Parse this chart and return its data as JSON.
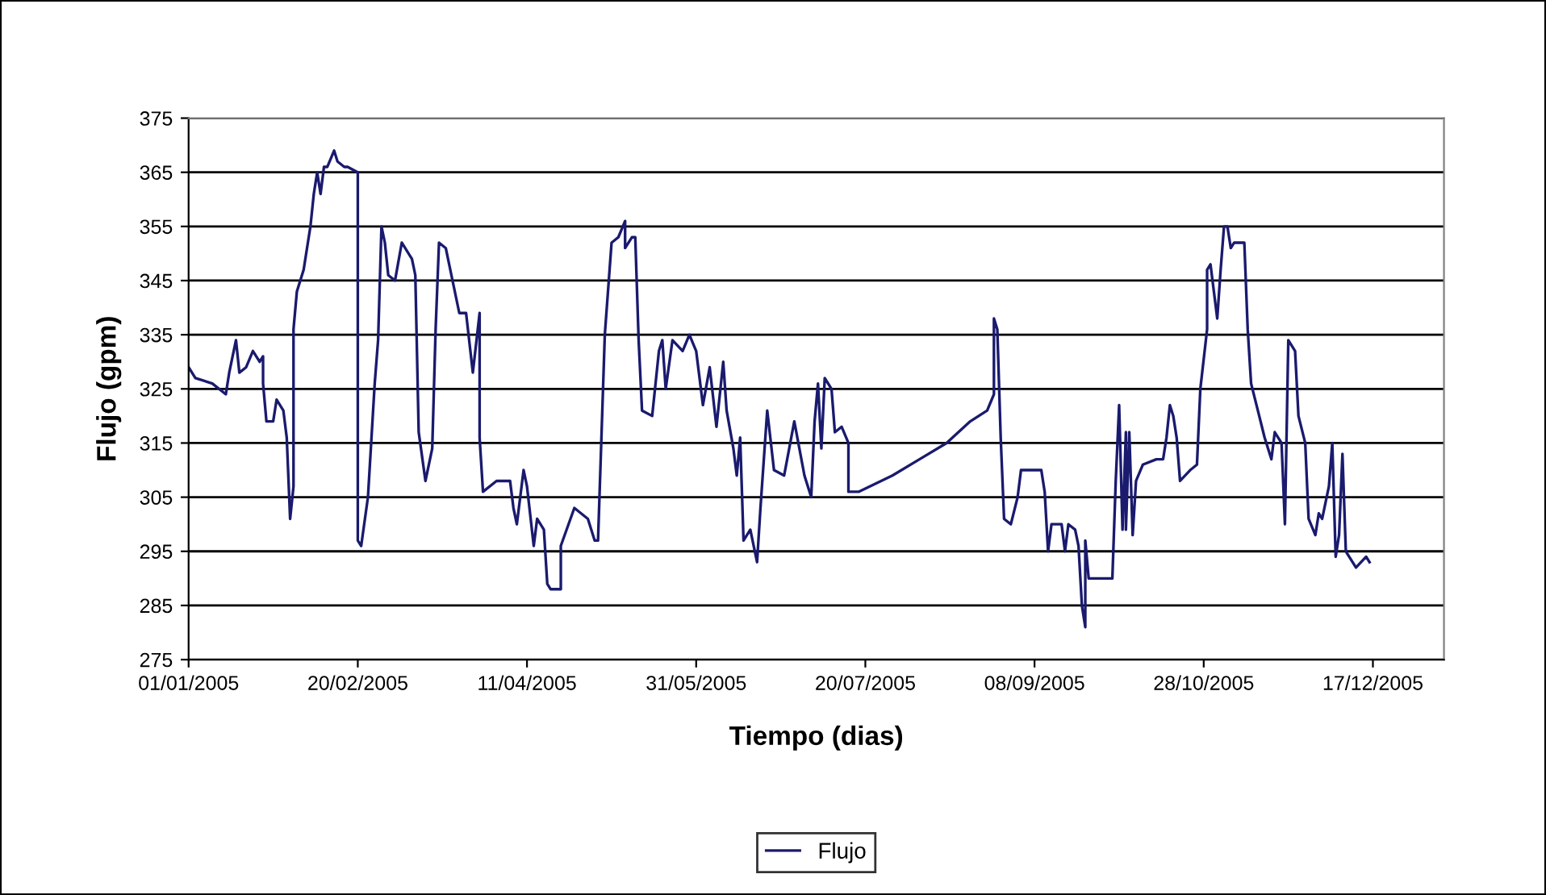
{
  "chart_data": {
    "type": "line",
    "xlabel": "Tiempo (dias)",
    "ylabel": "Flujo (gpm)",
    "xlim": [
      "2005-01-01",
      "2006-01-07"
    ],
    "xticks": [
      {
        "value": "2005-01-01",
        "label": "01/01/2005"
      },
      {
        "value": "2005-02-20",
        "label": "20/02/2005"
      },
      {
        "value": "2005-04-11",
        "label": "11/04/2005"
      },
      {
        "value": "2005-05-31",
        "label": "31/05/2005"
      },
      {
        "value": "2005-07-20",
        "label": "20/07/2005"
      },
      {
        "value": "2005-09-08",
        "label": "08/09/2005"
      },
      {
        "value": "2005-10-28",
        "label": "28/10/2005"
      },
      {
        "value": "2005-12-17",
        "label": "17/12/2005"
      }
    ],
    "ylim": [
      275,
      375
    ],
    "yticks": [
      275,
      285,
      295,
      305,
      315,
      325,
      335,
      345,
      355,
      365,
      375
    ],
    "grid": "y",
    "legend": "bottom",
    "marker": "none",
    "line_style": "solid",
    "series": [
      {
        "name": "Flujo",
        "color": "#1a1a6e",
        "x": [
          "2005-01-01",
          "2005-01-03",
          "2005-01-08",
          "2005-01-12",
          "2005-01-13",
          "2005-01-15",
          "2005-01-16",
          "2005-01-18",
          "2005-01-20",
          "2005-01-22",
          "2005-01-23",
          "2005-01-23",
          "2005-01-24",
          "2005-01-26",
          "2005-01-27",
          "2005-01-29",
          "2005-01-30",
          "2005-01-31",
          "2005-02-01",
          "2005-02-01",
          "2005-02-02",
          "2005-02-04",
          "2005-02-06",
          "2005-02-07",
          "2005-02-08",
          "2005-02-09",
          "2005-02-10",
          "2005-02-11",
          "2005-02-13",
          "2005-02-14",
          "2005-02-16",
          "2005-02-17",
          "2005-02-20",
          "2005-02-20",
          "2005-02-21",
          "2005-02-23",
          "2005-02-25",
          "2005-02-26",
          "2005-02-27",
          "2005-02-28",
          "2005-03-01",
          "2005-03-03",
          "2005-03-05",
          "2005-03-08",
          "2005-03-09",
          "2005-03-10",
          "2005-03-12",
          "2005-03-14",
          "2005-03-15",
          "2005-03-16",
          "2005-03-18",
          "2005-03-20",
          "2005-03-22",
          "2005-03-24",
          "2005-03-26",
          "2005-03-28",
          "2005-03-28",
          "2005-03-29",
          "2005-04-02",
          "2005-04-06",
          "2005-04-07",
          "2005-04-08",
          "2005-04-10",
          "2005-04-11",
          "2005-04-13",
          "2005-04-14",
          "2005-04-16",
          "2005-04-17",
          "2005-04-18",
          "2005-04-21",
          "2005-04-21",
          "2005-04-25",
          "2005-04-27",
          "2005-04-29",
          "2005-05-01",
          "2005-05-02",
          "2005-05-03",
          "2005-05-04",
          "2005-05-06",
          "2005-05-08",
          "2005-05-10",
          "2005-05-10",
          "2005-05-12",
          "2005-05-13",
          "2005-05-14",
          "2005-05-15",
          "2005-05-18",
          "2005-05-20",
          "2005-05-21",
          "2005-05-22",
          "2005-05-24",
          "2005-05-27",
          "2005-05-29",
          "2005-05-31",
          "2005-06-02",
          "2005-06-04",
          "2005-06-06",
          "2005-06-08",
          "2005-06-09",
          "2005-06-11",
          "2005-06-12",
          "2005-06-13",
          "2005-06-14",
          "2005-06-16",
          "2005-06-18",
          "2005-06-19",
          "2005-06-21",
          "2005-06-23",
          "2005-06-26",
          "2005-06-29",
          "2005-07-02",
          "2005-07-04",
          "2005-07-05",
          "2005-07-06",
          "2005-07-07",
          "2005-07-08",
          "2005-07-10",
          "2005-07-11",
          "2005-07-13",
          "2005-07-15",
          "2005-07-15",
          "2005-07-18",
          "2005-07-28",
          "2005-08-05",
          "2005-08-13",
          "2005-08-20",
          "2005-08-25",
          "2005-08-27",
          "2005-08-27",
          "2005-08-28",
          "2005-08-29",
          "2005-08-30",
          "2005-09-01",
          "2005-09-03",
          "2005-09-04",
          "2005-09-10",
          "2005-09-11",
          "2005-09-12",
          "2005-09-13",
          "2005-09-16",
          "2005-09-17",
          "2005-09-18",
          "2005-09-20",
          "2005-09-21",
          "2005-09-22",
          "2005-09-23",
          "2005-09-23",
          "2005-09-24",
          "2005-10-01",
          "2005-10-02",
          "2005-10-03",
          "2005-10-04",
          "2005-10-05",
          "2005-10-05",
          "2005-10-06",
          "2005-10-07",
          "2005-10-08",
          "2005-10-10",
          "2005-10-14",
          "2005-10-16",
          "2005-10-17",
          "2005-10-18",
          "2005-10-19",
          "2005-10-20",
          "2005-10-21",
          "2005-10-24",
          "2005-10-26",
          "2005-10-27",
          "2005-10-29",
          "2005-10-29",
          "2005-10-30",
          "2005-11-01",
          "2005-11-02",
          "2005-11-03",
          "2005-11-04",
          "2005-11-05",
          "2005-11-06",
          "2005-11-09",
          "2005-11-10",
          "2005-11-11",
          "2005-11-13",
          "2005-11-15",
          "2005-11-17",
          "2005-11-18",
          "2005-11-20",
          "2005-11-21",
          "2005-11-22",
          "2005-11-24",
          "2005-11-25",
          "2005-11-27",
          "2005-11-28",
          "2005-11-30",
          "2005-12-01",
          "2005-12-02",
          "2005-12-04",
          "2005-12-05",
          "2005-12-06",
          "2005-12-07",
          "2005-12-08",
          "2005-12-09",
          "2005-12-12",
          "2005-12-15",
          "2005-12-16"
        ],
        "values": [
          329,
          327,
          326,
          324,
          328,
          334,
          328,
          329,
          332,
          330,
          331,
          326,
          319,
          319,
          323,
          321,
          316,
          301,
          307,
          336,
          343,
          347,
          355,
          361,
          365,
          361,
          366,
          366,
          369,
          367,
          366,
          366,
          365,
          297,
          296,
          305,
          326,
          334,
          355,
          352,
          346,
          345,
          352,
          349,
          346,
          317,
          308,
          314,
          336,
          352,
          351,
          345,
          339,
          339,
          328,
          339,
          316,
          306,
          308,
          308,
          303,
          300,
          310,
          307,
          296,
          301,
          299,
          289,
          288,
          288,
          296,
          303,
          302,
          301,
          297,
          297,
          316,
          335,
          352,
          353,
          356,
          351,
          353,
          353,
          334,
          321,
          320,
          332,
          334,
          325,
          334,
          332,
          335,
          332,
          322,
          329,
          318,
          330,
          321,
          314,
          309,
          316,
          297,
          299,
          293,
          303,
          321,
          310,
          309,
          319,
          309,
          305,
          319,
          326,
          314,
          327,
          325,
          317,
          318,
          315,
          306,
          306,
          309,
          312,
          315,
          319,
          321,
          324,
          338,
          336,
          316,
          301,
          300,
          305,
          310,
          310,
          306,
          295,
          300,
          300,
          295,
          300,
          299,
          296,
          285,
          281,
          297,
          290,
          290,
          308,
          322,
          299,
          317,
          299,
          317,
          298,
          308,
          311,
          312,
          312,
          316,
          322,
          320,
          316,
          308,
          310,
          311,
          325,
          336,
          347,
          348,
          338,
          347,
          355,
          355,
          351,
          352,
          352,
          336,
          326,
          321,
          316,
          312,
          317,
          315,
          300,
          334,
          332,
          320,
          315,
          301,
          298,
          302,
          301,
          307,
          315,
          294,
          298,
          313,
          295,
          292,
          294,
          293
        ]
      }
    ]
  }
}
